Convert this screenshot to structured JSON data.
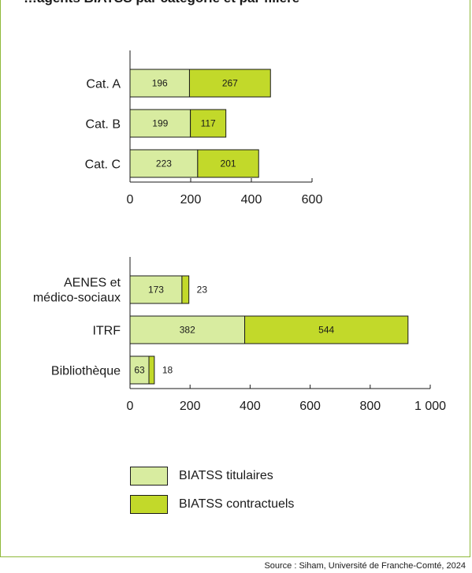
{
  "header": {
    "title": "…agents BIATSS par catégorie et par filière"
  },
  "colors": {
    "titulaires": "#d8eca0",
    "contractuels": "#c2d92a",
    "frame": "#8fb93a"
  },
  "legend": {
    "items": [
      {
        "label": "BIATSS titulaires",
        "color": "#d8eca0"
      },
      {
        "label": "BIATSS contractuels",
        "color": "#c2d92a"
      }
    ]
  },
  "footer": {
    "source": "Source : Siham, Université de Franche-Comté, 2024"
  },
  "chart_data": [
    {
      "type": "bar",
      "orientation": "horizontal",
      "stacked": true,
      "categories": [
        "Cat. A",
        "Cat. B",
        "Cat. C"
      ],
      "series": [
        {
          "name": "BIATSS titulaires",
          "values": [
            196,
            199,
            223
          ]
        },
        {
          "name": "BIATSS contractuels",
          "values": [
            267,
            117,
            201
          ]
        }
      ],
      "xlim": [
        0,
        600
      ],
      "ticks": [
        0,
        200,
        400,
        600
      ],
      "tick_labels": [
        "0",
        "200",
        "400",
        "600"
      ],
      "grid": false
    },
    {
      "type": "bar",
      "orientation": "horizontal",
      "stacked": true,
      "categories": [
        "AENES et médico-sociaux",
        "ITRF",
        "Bibliothèque"
      ],
      "category_lines": [
        [
          "AENES et",
          "médico-sociaux"
        ],
        [
          "ITRF"
        ],
        [
          "Bibliothèque"
        ]
      ],
      "series": [
        {
          "name": "BIATSS titulaires",
          "values": [
            173,
            382,
            63
          ]
        },
        {
          "name": "BIATSS contractuels",
          "values": [
            23,
            544,
            18
          ]
        }
      ],
      "xlim": [
        0,
        1000
      ],
      "ticks": [
        0,
        200,
        400,
        600,
        800,
        1000
      ],
      "tick_labels": [
        "0",
        "200",
        "400",
        "600",
        "800",
        "1 000"
      ],
      "grid": false
    }
  ]
}
